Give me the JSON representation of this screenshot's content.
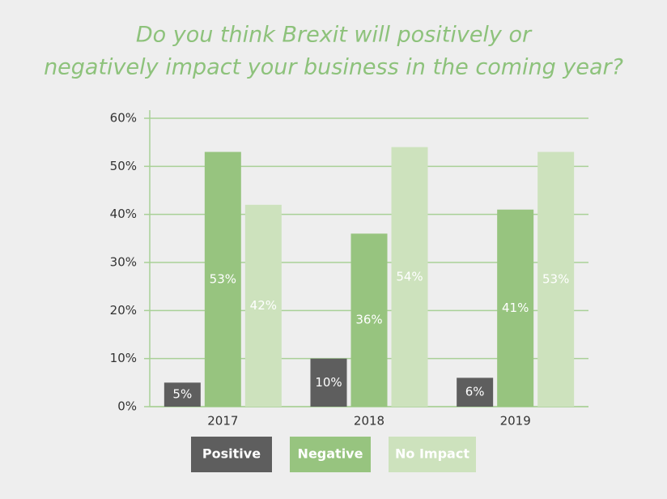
{
  "chart_data": {
    "type": "bar",
    "title": [
      "Do you think Brexit will positively or",
      "negatively impact your business in the coming year?"
    ],
    "categories": [
      "2017",
      "2018",
      "2019"
    ],
    "series": [
      {
        "name": "Positive",
        "color": "#5e5e5e",
        "values": [
          5,
          10,
          6
        ],
        "value_labels": [
          "5%",
          "10%",
          "6%"
        ]
      },
      {
        "name": "Negative",
        "color": "#97c47f",
        "values": [
          53,
          36,
          41
        ],
        "value_labels": [
          "53%",
          "36%",
          "41%"
        ]
      },
      {
        "name": "No Impact",
        "color": "#cde2bd",
        "values": [
          42,
          54,
          53
        ],
        "value_labels": [
          "42%",
          "54%",
          "53%"
        ]
      }
    ],
    "ylim": [
      0,
      60
    ],
    "yticks": [
      {
        "value": 0,
        "label": "0%"
      },
      {
        "value": 10,
        "label": "10%"
      },
      {
        "value": 20,
        "label": "20%"
      },
      {
        "value": 30,
        "label": "30%"
      },
      {
        "value": 40,
        "label": "40%"
      },
      {
        "value": 50,
        "label": "50%"
      },
      {
        "value": 60,
        "label": "60%"
      }
    ],
    "grid": true
  }
}
